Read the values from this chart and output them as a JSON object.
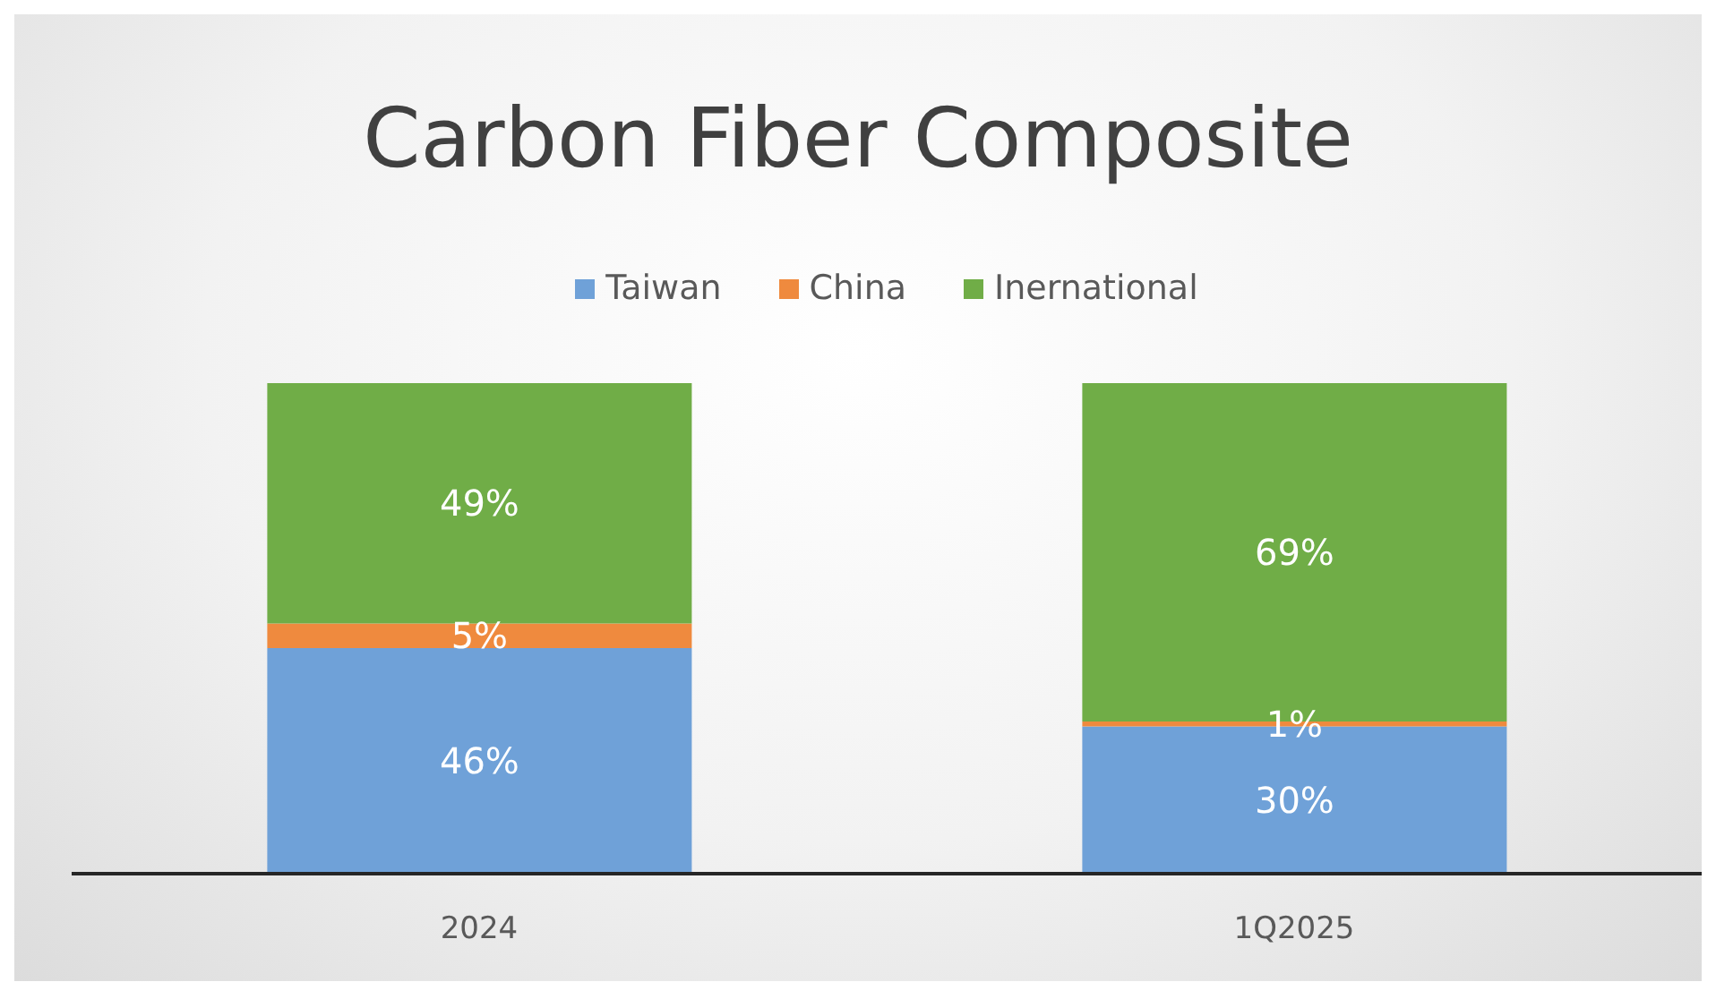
{
  "chart_data": {
    "type": "bar",
    "title": "Carbon Fiber Composite",
    "categories": [
      "2024",
      "1Q2025"
    ],
    "stacked": true,
    "legend": "top",
    "series": [
      {
        "name": "Taiwan",
        "color": "#6fa1d8",
        "values": [
          46,
          30
        ],
        "value_labels": [
          "46%",
          "30%"
        ]
      },
      {
        "name": "China",
        "color": "#ef8a3e",
        "values": [
          5,
          1
        ],
        "value_labels": [
          "5%",
          "1%"
        ]
      },
      {
        "name": "Inernational",
        "color": "#70ad47",
        "values": [
          49,
          69
        ],
        "value_labels": [
          "49%",
          "69%"
        ]
      }
    ]
  }
}
